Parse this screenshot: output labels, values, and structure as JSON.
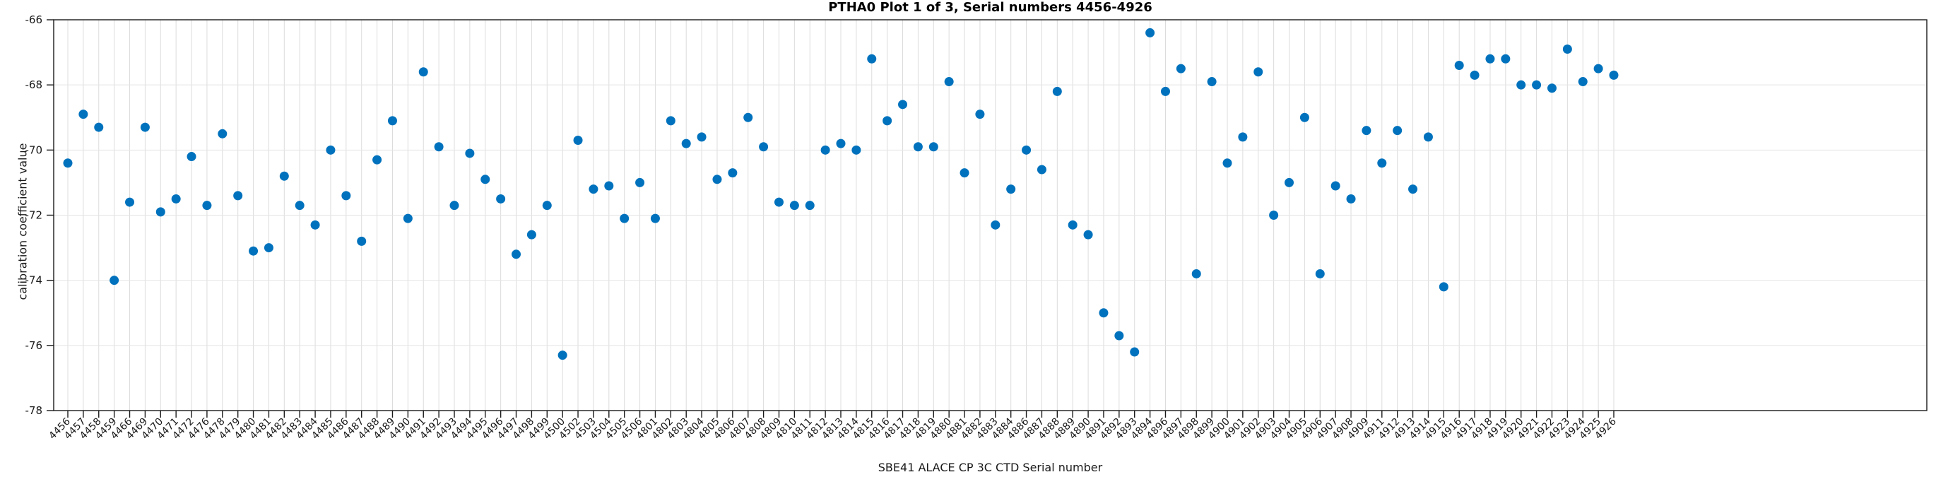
{
  "chart_data": {
    "type": "scatter",
    "title": "PTHA0 Plot 1 of 3, Serial numbers 4456-4926",
    "xlabel": "SBE41 ALACE CP 3C CTD Serial number",
    "ylabel": "calibration coefficient value",
    "ylim": [
      -78,
      -66
    ],
    "y_ticks": [
      -66,
      -68,
      -70,
      -72,
      -74,
      -76,
      -78
    ],
    "grid": "on",
    "legend": "none",
    "marker": {
      "shape": "filled-circle",
      "color": "#0072BD"
    },
    "axis_color": "#1a1a1a",
    "grid_color": "#dcdcdc",
    "categories": [
      "4456",
      "4457",
      "4458",
      "4459",
      "4466",
      "4469",
      "4470",
      "4471",
      "4472",
      "4476",
      "4478",
      "4479",
      "4480",
      "4481",
      "4482",
      "4483",
      "4484",
      "4485",
      "4486",
      "4487",
      "4488",
      "4489",
      "4490",
      "4491",
      "4492",
      "4493",
      "4494",
      "4495",
      "4496",
      "4497",
      "4498",
      "4499",
      "4500",
      "4502",
      "4503",
      "4504",
      "4505",
      "4506",
      "4801",
      "4802",
      "4803",
      "4804",
      "4805",
      "4806",
      "4807",
      "4808",
      "4809",
      "4810",
      "4811",
      "4812",
      "4813",
      "4814",
      "4815",
      "4816",
      "4817",
      "4818",
      "4819",
      "4880",
      "4881",
      "4882",
      "4883",
      "4884",
      "4886",
      "4887",
      "4888",
      "4889",
      "4890",
      "4891",
      "4892",
      "4893",
      "4894",
      "4896",
      "4897",
      "4898",
      "4899",
      "4900",
      "4901",
      "4902",
      "4903",
      "4904",
      "4905",
      "4906",
      "4907",
      "4908",
      "4909",
      "4911",
      "4912",
      "4913",
      "4914",
      "4915",
      "4916",
      "4917",
      "4918",
      "4919",
      "4920",
      "4921",
      "4922",
      "4923",
      "4924",
      "4925",
      "4926"
    ],
    "values": [
      -70.4,
      -68.9,
      -69.3,
      -74.0,
      -71.6,
      -69.3,
      -71.9,
      -71.5,
      -70.2,
      -71.7,
      -69.5,
      -71.4,
      -73.1,
      -73.0,
      -70.8,
      -71.7,
      -72.3,
      -70.0,
      -71.4,
      -72.8,
      -70.3,
      -69.1,
      -72.1,
      -67.6,
      -69.9,
      -71.7,
      -70.1,
      -70.9,
      -71.5,
      -73.2,
      -72.6,
      -71.7,
      -76.3,
      -69.7,
      -71.2,
      -71.1,
      -72.1,
      -71.0,
      -72.1,
      -69.1,
      -69.8,
      -69.6,
      -70.9,
      -70.7,
      -69.0,
      -69.9,
      -71.6,
      -71.7,
      -71.7,
      -70.0,
      -69.8,
      -70.0,
      -67.2,
      -69.1,
      -68.6,
      -69.9,
      -69.9,
      -67.9,
      -70.7,
      -68.9,
      -72.3,
      -71.2,
      -70.0,
      -70.6,
      -68.2,
      -72.3,
      -72.6,
      -75.0,
      -75.7,
      -76.2,
      -66.4,
      -68.2,
      -67.5,
      -73.8,
      -67.9,
      -70.4,
      -69.6,
      -67.6,
      -72.0,
      -71.0,
      -69.0,
      -73.8,
      -71.1,
      -71.5,
      -69.4,
      -70.4,
      -69.4,
      -71.2,
      -69.6,
      -74.2,
      -67.4,
      -67.7,
      -67.2,
      -67.2,
      -68.0,
      -68.0,
      -68.1,
      -66.9,
      -67.9,
      -67.5,
      -67.7
    ]
  }
}
